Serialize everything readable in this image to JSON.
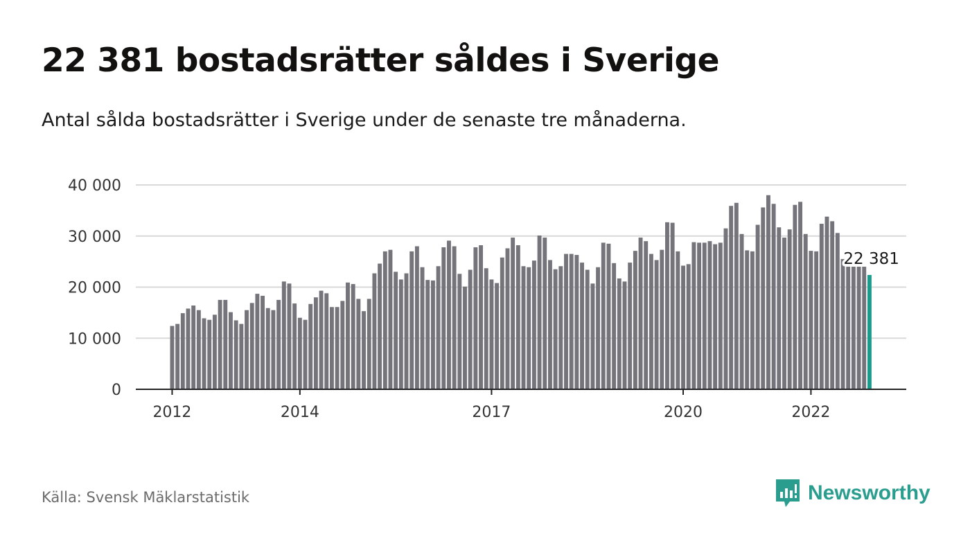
{
  "header": {
    "title": "22 381 bostadsrätter såldes i Sverige",
    "subtitle": "Antal sålda bostadsrätter i Sverige under de senaste tre månaderna."
  },
  "footer": {
    "source": "Källa: Svensk Mäklarstatistik",
    "brand": "Newsworthy"
  },
  "colors": {
    "bar": "#75747a",
    "highlight": "#1a9b8c",
    "grid": "#d9d9d9",
    "brand": "#2a9d8f"
  },
  "chart_data": {
    "type": "bar",
    "ylim": [
      0,
      40000
    ],
    "yticks": [
      {
        "value": 0,
        "label": "0"
      },
      {
        "value": 10000,
        "label": "10 000"
      },
      {
        "value": 20000,
        "label": "20 000"
      },
      {
        "value": 30000,
        "label": "30 000"
      },
      {
        "value": 40000,
        "label": "40 000"
      }
    ],
    "xticks": [
      {
        "index": 0,
        "label": "2012"
      },
      {
        "index": 24,
        "label": "2014"
      },
      {
        "index": 60,
        "label": "2017"
      },
      {
        "index": 96,
        "label": "2020"
      },
      {
        "index": 120,
        "label": "2022"
      }
    ],
    "grid": true,
    "highlight_index": 131,
    "highlight_label": "22 381",
    "values": [
      12400,
      12800,
      14900,
      15800,
      16400,
      15500,
      13900,
      13600,
      14600,
      17500,
      17500,
      15100,
      13500,
      12800,
      15500,
      16900,
      18700,
      18300,
      15900,
      15500,
      17500,
      21100,
      20700,
      16800,
      14000,
      13600,
      16700,
      18000,
      19300,
      18800,
      16100,
      16100,
      17300,
      20900,
      20600,
      17700,
      15300,
      17700,
      22700,
      24600,
      27000,
      27300,
      23000,
      21500,
      22700,
      27000,
      28000,
      23900,
      21400,
      21300,
      24100,
      27800,
      29100,
      28000,
      22600,
      20100,
      23400,
      27800,
      28200,
      23700,
      21500,
      20800,
      25800,
      27600,
      29700,
      28200,
      24100,
      23900,
      25200,
      30100,
      29700,
      25300,
      23500,
      24100,
      26500,
      26500,
      26300,
      24800,
      23400,
      20700,
      23900,
      28700,
      28500,
      24700,
      21700,
      21100,
      24800,
      27100,
      29700,
      29000,
      26500,
      25300,
      27300,
      32700,
      32600,
      27000,
      24200,
      24500,
      28800,
      28700,
      28700,
      29000,
      28400,
      28700,
      31500,
      35900,
      36500,
      30400,
      27200,
      27000,
      32200,
      35600,
      38000,
      36300,
      31700,
      29700,
      31300,
      36100,
      36700,
      30400,
      27100,
      27000,
      32400,
      33800,
      32900,
      30600,
      25500,
      24000,
      24000,
      24000,
      24000,
      22381
    ]
  }
}
